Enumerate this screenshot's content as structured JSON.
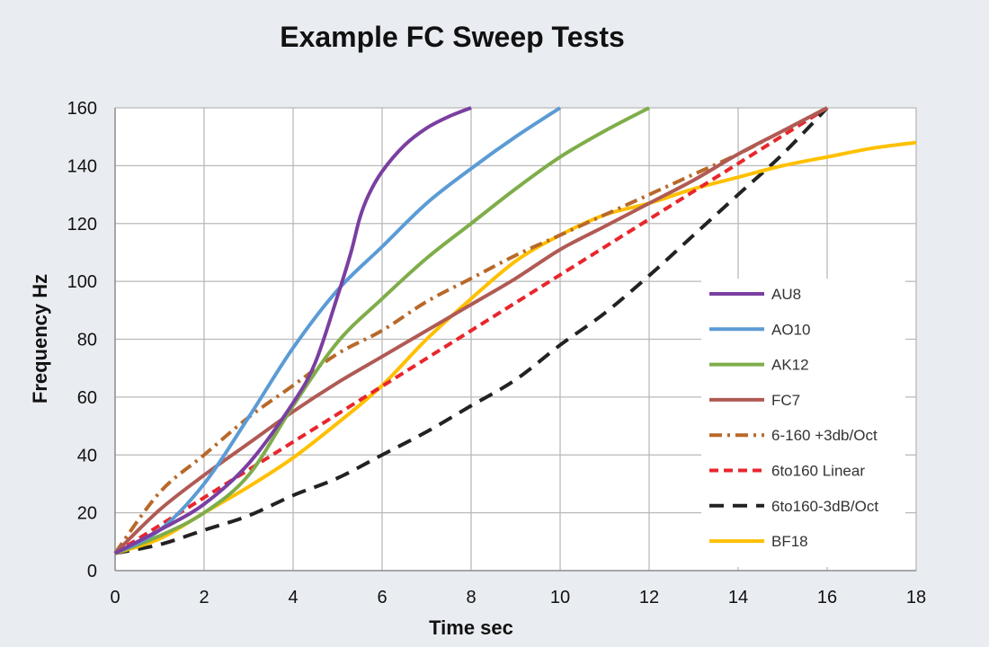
{
  "chart_data": {
    "type": "line",
    "title": "Example FC Sweep Tests",
    "xlabel": "Time sec",
    "ylabel": "Frequency Hz",
    "xlim": [
      0,
      18
    ],
    "ylim": [
      0,
      160
    ],
    "xticks": [
      0,
      2,
      4,
      6,
      8,
      10,
      12,
      14,
      16,
      18
    ],
    "yticks": [
      0,
      20,
      40,
      60,
      80,
      100,
      120,
      140,
      160
    ],
    "grid": true,
    "legend_position": "right",
    "series": [
      {
        "name": "AU8",
        "color": "#7a3fa0",
        "dash": "solid",
        "points": [
          [
            0,
            6
          ],
          [
            1,
            14
          ],
          [
            2,
            23
          ],
          [
            3,
            37
          ],
          [
            4,
            58
          ],
          [
            4.5,
            72
          ],
          [
            5,
            95
          ],
          [
            5.3,
            110
          ],
          [
            5.5,
            122
          ],
          [
            5.7,
            130
          ],
          [
            6,
            138
          ],
          [
            6.5,
            147
          ],
          [
            7,
            153
          ],
          [
            7.5,
            157
          ],
          [
            8,
            160
          ]
        ]
      },
      {
        "name": "AO10",
        "color": "#5b9bd5",
        "dash": "solid",
        "points": [
          [
            0,
            6
          ],
          [
            1,
            14
          ],
          [
            2,
            30
          ],
          [
            3,
            53
          ],
          [
            4,
            77
          ],
          [
            5,
            97
          ],
          [
            6,
            112
          ],
          [
            7,
            127
          ],
          [
            8,
            139
          ],
          [
            9,
            150
          ],
          [
            10,
            160
          ]
        ]
      },
      {
        "name": "AK12",
        "color": "#7fad4a",
        "dash": "solid",
        "points": [
          [
            0,
            6
          ],
          [
            1,
            12
          ],
          [
            2,
            20
          ],
          [
            3,
            33
          ],
          [
            4,
            57
          ],
          [
            5,
            79
          ],
          [
            6,
            94
          ],
          [
            7,
            108
          ],
          [
            8,
            120
          ],
          [
            9,
            132
          ],
          [
            10,
            143
          ],
          [
            11,
            152
          ],
          [
            12,
            160
          ]
        ]
      },
      {
        "name": "FC7",
        "color": "#b05a54",
        "dash": "solid",
        "points": [
          [
            0,
            6
          ],
          [
            1,
            21
          ],
          [
            2,
            33
          ],
          [
            3,
            44
          ],
          [
            4,
            55
          ],
          [
            5,
            65
          ],
          [
            6,
            74
          ],
          [
            7,
            83
          ],
          [
            8,
            92
          ],
          [
            9,
            101
          ],
          [
            10,
            111
          ],
          [
            11,
            119
          ],
          [
            12,
            127
          ],
          [
            13,
            135
          ],
          [
            14,
            144
          ],
          [
            15,
            152
          ],
          [
            16,
            160
          ]
        ]
      },
      {
        "name": "6-160 +3db/Oct",
        "color": "#b8692a",
        "dash": "dashdot",
        "points": [
          [
            0,
            6
          ],
          [
            1,
            27
          ],
          [
            2,
            40
          ],
          [
            3,
            53
          ],
          [
            4,
            64
          ],
          [
            5,
            75
          ],
          [
            6,
            83
          ],
          [
            7,
            93
          ],
          [
            8,
            101
          ],
          [
            9,
            109
          ],
          [
            10,
            116
          ],
          [
            11,
            123
          ],
          [
            12,
            130
          ],
          [
            13,
            137
          ],
          [
            14,
            144
          ],
          [
            15,
            152
          ],
          [
            16,
            160
          ]
        ]
      },
      {
        "name": "6to160 Linear",
        "color": "#e8262c",
        "dash": "dash",
        "points": [
          [
            0,
            6
          ],
          [
            16,
            160
          ]
        ]
      },
      {
        "name": "6to160-3dB/Oct",
        "color": "#222222",
        "dash": "longdash",
        "points": [
          [
            0,
            6
          ],
          [
            1,
            9
          ],
          [
            2,
            14
          ],
          [
            3,
            19
          ],
          [
            4,
            26
          ],
          [
            5,
            32
          ],
          [
            6,
            40
          ],
          [
            7,
            48
          ],
          [
            8,
            57
          ],
          [
            9,
            66
          ],
          [
            10,
            78
          ],
          [
            11,
            89
          ],
          [
            12,
            102
          ],
          [
            13,
            116
          ],
          [
            14,
            130
          ],
          [
            15,
            144
          ],
          [
            16,
            160
          ]
        ]
      },
      {
        "name": "BF18",
        "color": "#ffc000",
        "dash": "solid",
        "points": [
          [
            0,
            6
          ],
          [
            1,
            11
          ],
          [
            2,
            20
          ],
          [
            3,
            29
          ],
          [
            4,
            39
          ],
          [
            5,
            51
          ],
          [
            6,
            64
          ],
          [
            7,
            80
          ],
          [
            8,
            94
          ],
          [
            9,
            107
          ],
          [
            10,
            116
          ],
          [
            11,
            123
          ],
          [
            12,
            127
          ],
          [
            13,
            132
          ],
          [
            14,
            136
          ],
          [
            15,
            140
          ],
          [
            16,
            143
          ],
          [
            17,
            146
          ],
          [
            18,
            148
          ]
        ]
      }
    ]
  }
}
